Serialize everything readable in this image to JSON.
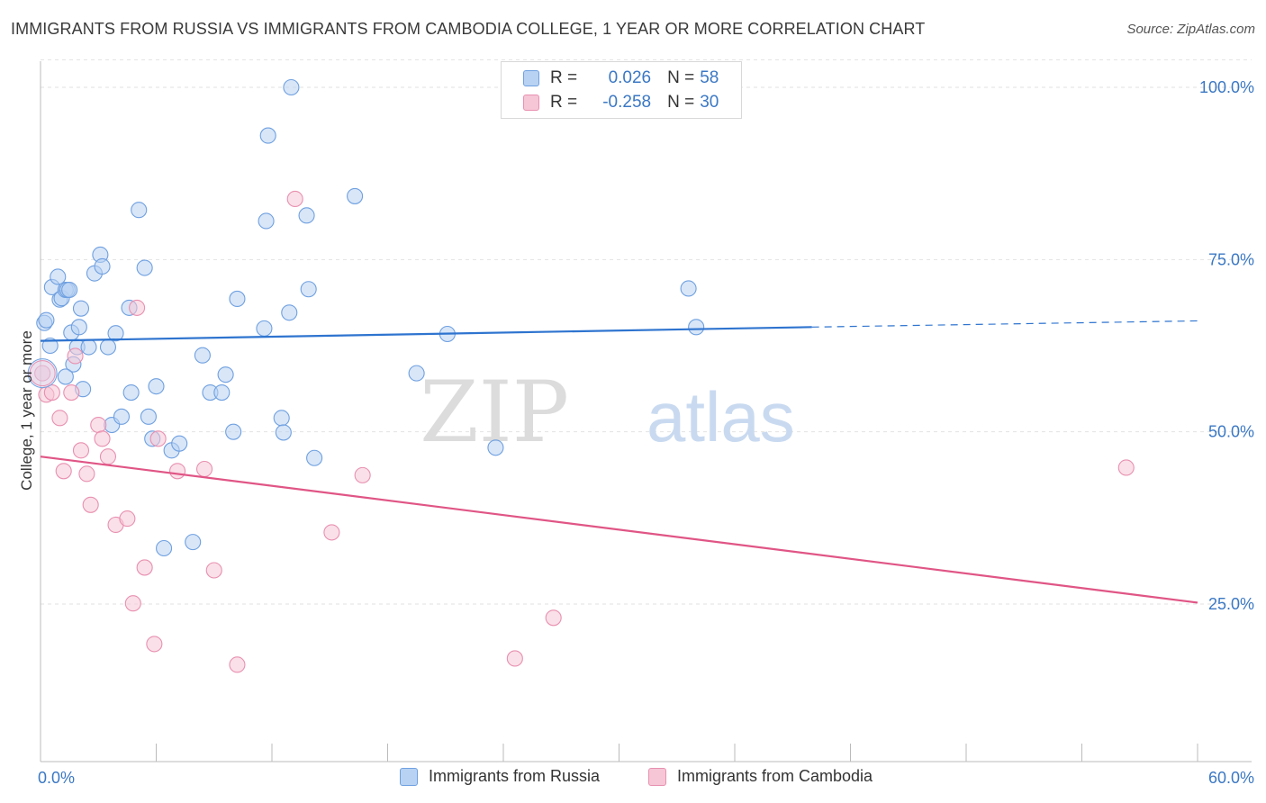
{
  "title": "IMMIGRANTS FROM RUSSIA VS IMMIGRANTS FROM CAMBODIA COLLEGE, 1 YEAR OR MORE CORRELATION CHART",
  "source": "Source: ZipAtlas.com",
  "watermark": {
    "zip": "ZIP",
    "atlas": "atlas"
  },
  "legend": {
    "rows": [
      {
        "r_label": "R =",
        "r_value": "0.026",
        "n_label": "N =",
        "n_value": "58"
      },
      {
        "r_label": "R =",
        "r_value": "-0.258",
        "n_label": "N =",
        "n_value": "30"
      }
    ]
  },
  "chart_data": {
    "type": "scatter",
    "title": "IMMIGRANTS FROM RUSSIA VS IMMIGRANTS FROM CAMBODIA COLLEGE, 1 YEAR OR MORE CORRELATION CHART",
    "xlabel": "",
    "ylabel": "College, 1 year or more",
    "xlim": [
      0,
      60
    ],
    "ylim": [
      0,
      100
    ],
    "x_tick_labels": [
      "0.0%",
      "60.0%"
    ],
    "y_tick_labels": [
      "25.0%",
      "50.0%",
      "75.0%",
      "100.0%"
    ],
    "y_tick_values": [
      25,
      50,
      75,
      100
    ],
    "grid": true,
    "legend_placement": "top-center",
    "series": [
      {
        "name": "Immigrants from Russia",
        "color": "#6fa0e0",
        "fill": "#b8d2f3",
        "trend": {
          "x": [
            0,
            40
          ],
          "y": [
            63.2,
            65.2
          ],
          "dashed_to_x": 60,
          "dashed_to_y": 66.1,
          "color": "#2e74cf"
        },
        "points": [
          [
            0.2,
            65.8
          ],
          [
            0.3,
            66.2
          ],
          [
            0.5,
            62.5
          ],
          [
            0.6,
            71.0
          ],
          [
            0.9,
            72.5
          ],
          [
            1.0,
            69.2
          ],
          [
            1.1,
            69.4
          ],
          [
            1.3,
            70.6
          ],
          [
            1.4,
            70.6
          ],
          [
            1.5,
            70.6
          ],
          [
            1.6,
            64.4
          ],
          [
            1.7,
            59.8
          ],
          [
            1.9,
            62.3
          ],
          [
            2.0,
            65.2
          ],
          [
            2.1,
            67.9
          ],
          [
            2.5,
            62.3
          ],
          [
            2.8,
            73.0
          ],
          [
            3.1,
            75.7
          ],
          [
            3.2,
            74.0
          ],
          [
            3.5,
            62.3
          ],
          [
            3.7,
            51.0
          ],
          [
            3.9,
            64.3
          ],
          [
            4.2,
            52.2
          ],
          [
            4.6,
            68.0
          ],
          [
            4.7,
            55.7
          ],
          [
            5.1,
            82.2
          ],
          [
            5.4,
            73.8
          ],
          [
            5.6,
            52.2
          ],
          [
            5.8,
            49.0
          ],
          [
            6.0,
            56.6
          ],
          [
            6.4,
            33.1
          ],
          [
            6.8,
            47.3
          ],
          [
            7.2,
            48.3
          ],
          [
            7.9,
            34.0
          ],
          [
            8.4,
            61.1
          ],
          [
            8.8,
            55.7
          ],
          [
            9.4,
            55.7
          ],
          [
            9.6,
            58.3
          ],
          [
            10.0,
            50.0
          ],
          [
            10.2,
            69.3
          ],
          [
            11.6,
            65.0
          ],
          [
            11.7,
            80.6
          ],
          [
            11.8,
            93.0
          ],
          [
            12.5,
            52.0
          ],
          [
            12.6,
            49.9
          ],
          [
            12.9,
            67.3
          ],
          [
            13.0,
            100.0
          ],
          [
            13.8,
            81.4
          ],
          [
            13.9,
            70.7
          ],
          [
            14.2,
            46.2
          ],
          [
            16.3,
            84.2
          ],
          [
            19.5,
            58.5
          ],
          [
            21.1,
            64.2
          ],
          [
            23.6,
            47.7
          ],
          [
            33.6,
            70.8
          ],
          [
            34.0,
            65.2
          ],
          [
            1.3,
            58.0
          ],
          [
            2.2,
            56.2
          ]
        ]
      },
      {
        "name": "Immigrants from Cambodia",
        "color": "#e890b0",
        "fill": "#f6c6d6",
        "trend": {
          "x": [
            0,
            60
          ],
          "y": [
            46.4,
            25.2
          ],
          "color": "#e05585"
        },
        "points": [
          [
            0.1,
            58.5
          ],
          [
            0.3,
            55.4
          ],
          [
            0.6,
            55.7
          ],
          [
            1.0,
            52.0
          ],
          [
            1.2,
            44.3
          ],
          [
            1.6,
            55.7
          ],
          [
            1.8,
            61.0
          ],
          [
            2.1,
            47.3
          ],
          [
            2.4,
            43.9
          ],
          [
            2.6,
            39.4
          ],
          [
            3.0,
            51.0
          ],
          [
            3.2,
            49.0
          ],
          [
            3.5,
            46.4
          ],
          [
            3.9,
            36.5
          ],
          [
            4.5,
            37.4
          ],
          [
            4.8,
            25.1
          ],
          [
            5.0,
            68.0
          ],
          [
            5.4,
            30.3
          ],
          [
            5.9,
            19.2
          ],
          [
            6.1,
            49.0
          ],
          [
            7.1,
            44.3
          ],
          [
            8.5,
            44.6
          ],
          [
            9.0,
            29.9
          ],
          [
            10.2,
            16.2
          ],
          [
            13.2,
            83.8
          ],
          [
            15.1,
            35.4
          ],
          [
            16.7,
            43.7
          ],
          [
            24.6,
            17.1
          ],
          [
            26.6,
            23.0
          ],
          [
            56.3,
            44.8
          ]
        ]
      }
    ]
  }
}
